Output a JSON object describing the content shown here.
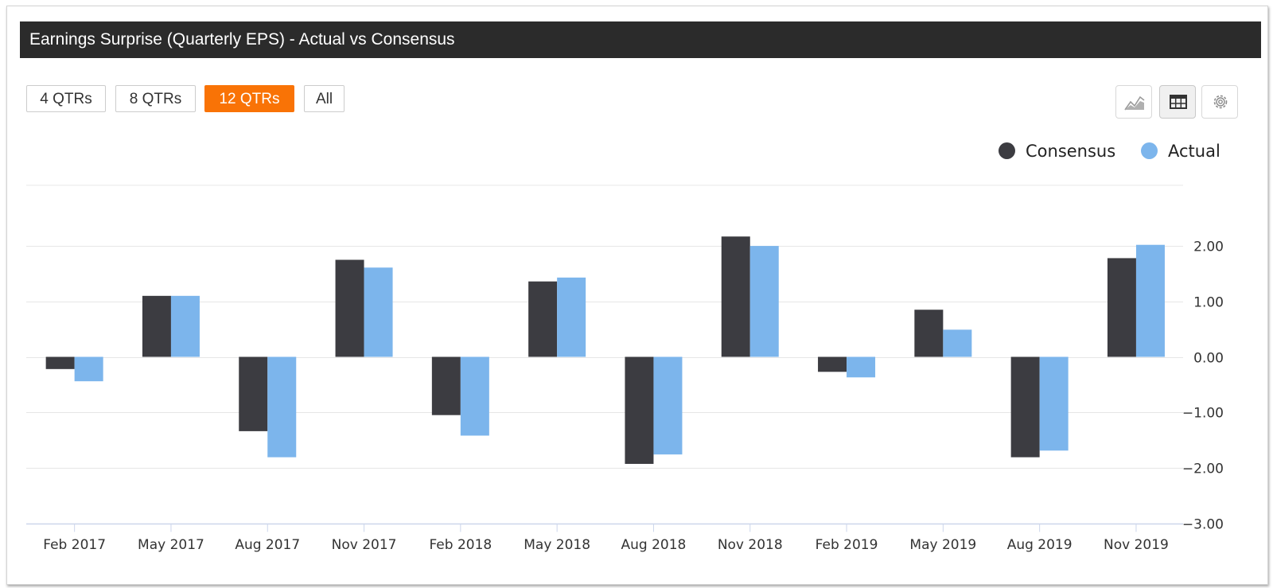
{
  "header": {
    "title": "Earnings Surprise (Quarterly EPS) - Actual vs Consensus"
  },
  "range_buttons": [
    {
      "label": "4 QTRs",
      "active": false
    },
    {
      "label": "8 QTRs",
      "active": false
    },
    {
      "label": "12 QTRs",
      "active": true
    },
    {
      "label": "All",
      "active": false
    }
  ],
  "toolbar": {
    "icons": [
      "area-chart-icon",
      "table-icon",
      "gear-icon"
    ]
  },
  "colors": {
    "consensus": "#3c3c41",
    "actual": "#7cb5ec",
    "accent": "#f97306",
    "title_bar": "#2b2b2b"
  },
  "chart_data": {
    "type": "bar",
    "title": "Earnings Surprise (Quarterly EPS) - Actual vs Consensus",
    "xlabel": "",
    "ylabel": "",
    "categories": [
      "Feb 2017",
      "May 2017",
      "Aug 2017",
      "Nov 2017",
      "Feb 2018",
      "May 2018",
      "Aug 2018",
      "Nov 2018",
      "Feb 2019",
      "May 2019",
      "Aug 2019",
      "Nov 2019"
    ],
    "series": [
      {
        "name": "Consensus",
        "values": [
          -0.22,
          1.1,
          -1.34,
          1.75,
          -1.05,
          1.36,
          -1.93,
          2.17,
          -0.27,
          0.85,
          -1.81,
          1.78
        ]
      },
      {
        "name": "Actual",
        "values": [
          -0.44,
          1.1,
          -1.81,
          1.61,
          -1.42,
          1.43,
          -1.76,
          2.0,
          -0.37,
          0.49,
          -1.69,
          2.02
        ]
      }
    ],
    "yticks": [
      "2.00",
      "1.00",
      "0.00",
      "−1.00",
      "−2.00",
      "−3.00"
    ],
    "ytick_values": [
      2,
      1,
      0,
      -1,
      -2,
      -3
    ],
    "ylim": [
      -3,
      3.1
    ],
    "legend": [
      "Consensus",
      "Actual"
    ],
    "legend_position": "top-right",
    "grid": true
  }
}
